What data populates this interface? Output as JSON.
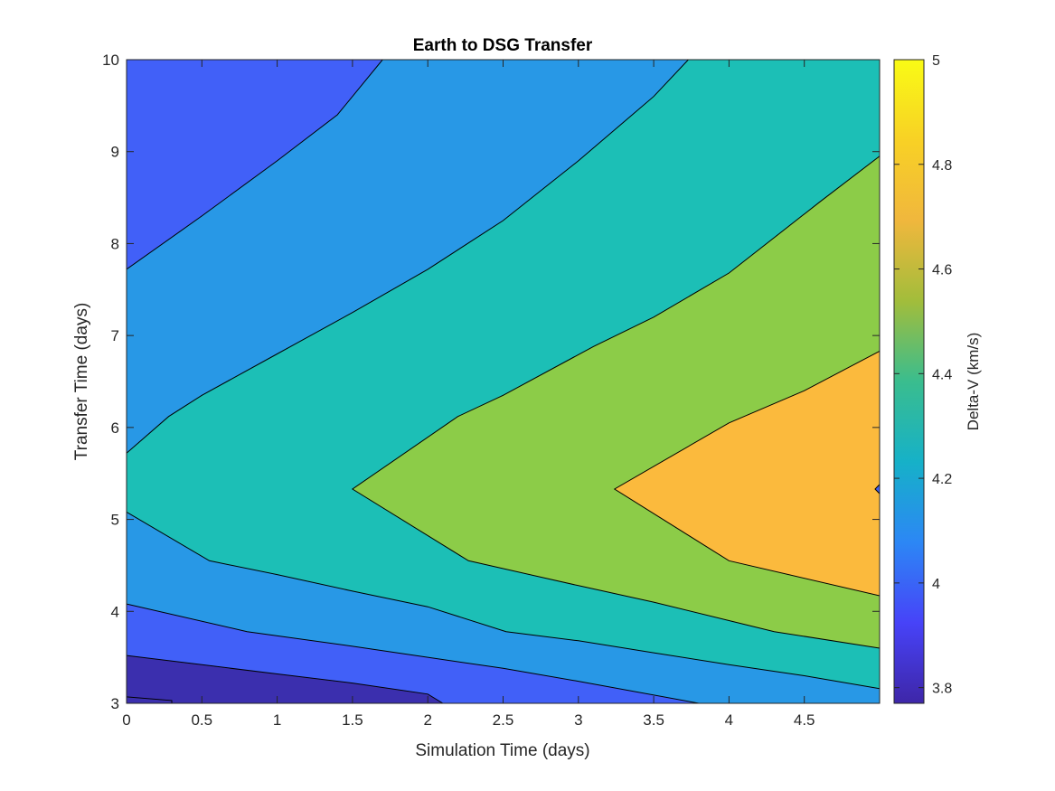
{
  "chart_data": {
    "type": "contourf",
    "title": "Earth to DSG Transfer",
    "xlabel": "Simulation Time (days)",
    "ylabel": "Transfer Time (days)",
    "xlim": [
      0,
      5
    ],
    "ylim": [
      3,
      10
    ],
    "xticks": [
      0,
      0.5,
      1,
      1.5,
      2,
      2.5,
      3,
      3.5,
      4,
      4.5
    ],
    "xtick_labels": [
      "0",
      "0.5",
      "1",
      "1.5",
      "2",
      "2.5",
      "3",
      "3.5",
      "4",
      "4.5"
    ],
    "yticks": [
      3,
      4,
      5,
      6,
      7,
      8,
      9,
      10
    ],
    "ytick_labels": [
      "3",
      "4",
      "5",
      "6",
      "7",
      "8",
      "9",
      "10"
    ],
    "colorbar": {
      "label": "Delta-V (km/s)",
      "range": [
        3.77,
        5.0
      ],
      "ticks": [
        3.8,
        4.0,
        4.2,
        4.4,
        4.6,
        4.8,
        5.0
      ],
      "tick_labels": [
        "3.8",
        "4",
        "4.2",
        "4.4",
        "4.6",
        "4.8",
        "5"
      ],
      "colormap": [
        "#3e26a8",
        "#4743f8",
        "#2c87f5",
        "#16b1c8",
        "#3abd8e",
        "#a2bd3b",
        "#f0b73d",
        "#f8d125",
        "#f9fb15"
      ]
    },
    "level_colors": [
      "#3b2fae",
      "#4160f8",
      "#2898e6",
      "#1cbfb6",
      "#8ccc48",
      "#fbba3d"
    ],
    "regions": [
      {
        "level": 0,
        "boundary": [
          [
            0,
            3.07
          ],
          [
            0.3,
            3.03
          ],
          [
            0.3,
            3
          ],
          [
            0,
            3
          ]
        ]
      },
      {
        "level": 0,
        "boundary": [
          [
            0,
            3.52
          ],
          [
            0.5,
            3.42
          ],
          [
            1,
            3.32
          ],
          [
            1.5,
            3.22
          ],
          [
            2,
            3.1
          ],
          [
            2.1,
            3.0
          ],
          [
            0,
            3.0
          ]
        ]
      },
      {
        "level": 1,
        "boundary": [
          [
            0,
            4.08
          ],
          [
            0.8,
            3.78
          ],
          [
            1.5,
            3.62
          ],
          [
            2,
            3.5
          ],
          [
            2.5,
            3.38
          ],
          [
            3,
            3.24
          ],
          [
            3.8,
            3.0
          ],
          [
            2.1,
            3.0
          ],
          [
            2,
            3.1
          ],
          [
            1.5,
            3.22
          ],
          [
            1,
            3.32
          ],
          [
            0.5,
            3.42
          ],
          [
            0,
            3.52
          ]
        ]
      },
      {
        "level": 1,
        "boundary": [
          [
            0,
            7.72
          ],
          [
            0.5,
            8.3
          ],
          [
            1,
            8.9
          ],
          [
            1.4,
            9.4
          ],
          [
            1.7,
            10
          ],
          [
            0,
            10
          ]
        ]
      },
      {
        "level": 2,
        "boundary": [
          [
            0,
            5.08
          ],
          [
            0.55,
            4.55
          ],
          [
            1,
            4.4
          ],
          [
            1.5,
            4.22
          ],
          [
            2,
            4.05
          ],
          [
            2.52,
            3.78
          ],
          [
            3,
            3.68
          ],
          [
            3.5,
            3.55
          ],
          [
            4,
            3.42
          ],
          [
            4.5,
            3.3
          ],
          [
            5,
            3.16
          ],
          [
            5,
            3
          ],
          [
            3.8,
            3.0
          ],
          [
            3,
            3.24
          ],
          [
            2.5,
            3.38
          ],
          [
            2,
            3.5
          ],
          [
            1.5,
            3.62
          ],
          [
            0.8,
            3.78
          ],
          [
            0,
            4.08
          ]
        ]
      },
      {
        "level": 2,
        "boundary": [
          [
            0,
            5.72
          ],
          [
            0.28,
            6.12
          ],
          [
            0.5,
            6.35
          ],
          [
            1,
            6.8
          ],
          [
            1.5,
            7.25
          ],
          [
            2,
            7.72
          ],
          [
            2.5,
            8.25
          ],
          [
            3,
            8.9
          ],
          [
            3.5,
            9.6
          ],
          [
            3.73,
            10
          ],
          [
            1.7,
            10
          ],
          [
            1.4,
            9.4
          ],
          [
            1,
            8.9
          ],
          [
            0.5,
            8.3
          ],
          [
            0,
            7.72
          ]
        ]
      },
      {
        "level": 3,
        "boundary": [
          [
            0,
            5.72
          ],
          [
            0,
            5.08
          ],
          [
            0.55,
            4.55
          ],
          [
            1,
            4.4
          ],
          [
            1.5,
            4.22
          ],
          [
            2,
            4.05
          ],
          [
            2.52,
            3.78
          ],
          [
            3,
            3.68
          ],
          [
            3.5,
            3.55
          ],
          [
            4,
            3.42
          ],
          [
            4.5,
            3.3
          ],
          [
            5,
            3.16
          ],
          [
            5,
            3.6
          ],
          [
            4.3,
            3.78
          ],
          [
            4,
            3.9
          ],
          [
            3.5,
            4.1
          ],
          [
            3,
            4.28
          ],
          [
            2.27,
            4.55
          ],
          [
            1.5,
            5.33
          ],
          [
            2.2,
            6.12
          ],
          [
            2.5,
            6.35
          ],
          [
            3.1,
            6.88
          ],
          [
            3.5,
            7.2
          ],
          [
            4,
            7.68
          ],
          [
            4.6,
            8.45
          ],
          [
            5,
            8.95
          ],
          [
            5,
            10
          ],
          [
            3.73,
            10
          ],
          [
            3.5,
            9.6
          ],
          [
            3,
            8.9
          ],
          [
            2.5,
            8.25
          ],
          [
            2,
            7.72
          ],
          [
            1.5,
            7.25
          ],
          [
            1,
            6.8
          ],
          [
            0.5,
            6.35
          ],
          [
            0.28,
            6.12
          ]
        ]
      },
      {
        "level": 4,
        "boundary": [
          [
            1.5,
            5.33
          ],
          [
            2.27,
            4.55
          ],
          [
            3,
            4.28
          ],
          [
            3.5,
            4.1
          ],
          [
            4,
            3.9
          ],
          [
            4.3,
            3.78
          ],
          [
            5,
            3.6
          ],
          [
            5,
            4.17
          ],
          [
            4,
            4.55
          ],
          [
            3.24,
            5.33
          ],
          [
            4,
            6.05
          ],
          [
            4.5,
            6.4
          ],
          [
            5,
            6.83
          ],
          [
            5,
            8.95
          ],
          [
            4.6,
            8.45
          ],
          [
            4,
            7.68
          ],
          [
            3.5,
            7.2
          ],
          [
            3.1,
            6.88
          ],
          [
            2.5,
            6.35
          ],
          [
            2.2,
            6.12
          ]
        ]
      },
      {
        "level": 5,
        "boundary": [
          [
            3.24,
            5.33
          ],
          [
            4,
            4.55
          ],
          [
            5,
            4.17
          ],
          [
            5,
            5.28
          ],
          [
            4.97,
            5.33
          ],
          [
            5,
            5.38
          ],
          [
            5,
            6.83
          ],
          [
            4.5,
            6.4
          ],
          [
            4,
            6.05
          ]
        ]
      }
    ],
    "contour_lines": [
      [
        [
          0,
          3.07
        ],
        [
          0.3,
          3.03
        ],
        [
          0.3,
          3
        ]
      ],
      [
        [
          0,
          3.52
        ],
        [
          0.5,
          3.42
        ],
        [
          1,
          3.32
        ],
        [
          1.5,
          3.22
        ],
        [
          2,
          3.1
        ],
        [
          2.1,
          3.0
        ]
      ],
      [
        [
          0,
          4.08
        ],
        [
          0.8,
          3.78
        ],
        [
          1.5,
          3.62
        ],
        [
          2,
          3.5
        ],
        [
          2.5,
          3.38
        ],
        [
          3,
          3.24
        ],
        [
          3.8,
          3.0
        ]
      ],
      [
        [
          0,
          5.08
        ],
        [
          0.55,
          4.55
        ],
        [
          1,
          4.4
        ],
        [
          1.5,
          4.22
        ],
        [
          2,
          4.05
        ],
        [
          2.52,
          3.78
        ],
        [
          3,
          3.68
        ],
        [
          3.5,
          3.55
        ],
        [
          4,
          3.42
        ],
        [
          4.5,
          3.3
        ],
        [
          5,
          3.16
        ]
      ],
      [
        [
          0,
          5.72
        ],
        [
          0.28,
          6.12
        ],
        [
          0.5,
          6.35
        ],
        [
          1,
          6.8
        ],
        [
          1.5,
          7.25
        ],
        [
          2,
          7.72
        ],
        [
          2.5,
          8.25
        ],
        [
          3,
          8.9
        ],
        [
          3.5,
          9.6
        ],
        [
          3.73,
          10
        ]
      ],
      [
        [
          0,
          7.72
        ],
        [
          0.5,
          8.3
        ],
        [
          1,
          8.9
        ],
        [
          1.4,
          9.4
        ],
        [
          1.7,
          10
        ]
      ],
      [
        [
          5,
          3.6
        ],
        [
          4.3,
          3.78
        ],
        [
          4,
          3.9
        ],
        [
          3.5,
          4.1
        ],
        [
          3,
          4.28
        ],
        [
          2.27,
          4.55
        ],
        [
          1.5,
          5.33
        ],
        [
          2.2,
          6.12
        ],
        [
          2.5,
          6.35
        ],
        [
          3.1,
          6.88
        ],
        [
          3.5,
          7.2
        ],
        [
          4,
          7.68
        ],
        [
          4.6,
          8.45
        ],
        [
          5,
          8.95
        ]
      ],
      [
        [
          5,
          4.17
        ],
        [
          4,
          4.55
        ],
        [
          3.24,
          5.33
        ],
        [
          4,
          6.05
        ],
        [
          4.5,
          6.4
        ],
        [
          5,
          6.83
        ]
      ],
      [
        [
          5,
          5.28
        ],
        [
          4.97,
          5.33
        ],
        [
          5,
          5.38
        ]
      ]
    ],
    "grid": false,
    "legend": "none"
  }
}
